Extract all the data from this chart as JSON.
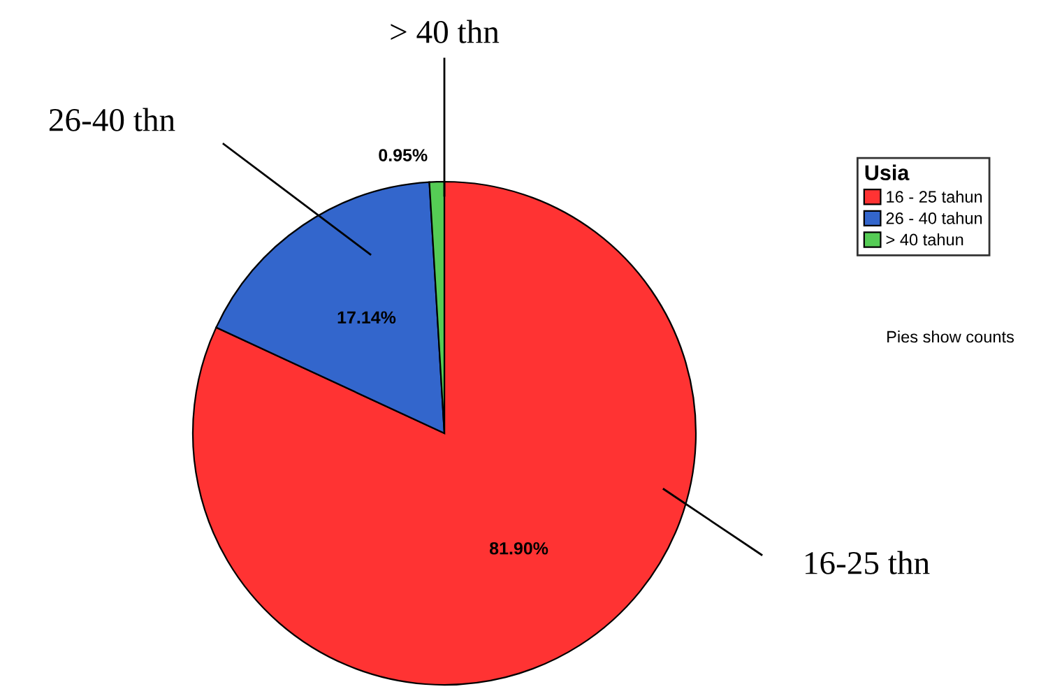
{
  "chart_data": {
    "type": "pie",
    "categories": [
      "16 - 25 tahun",
      "26 - 40 tahun",
      "> 40 tahun"
    ],
    "values": [
      81.9,
      17.14,
      0.95
    ],
    "value_labels": [
      "81.90%",
      "17.14%",
      "0.95%"
    ],
    "colors": [
      "#ff3333",
      "#3366cc",
      "#55cc55"
    ],
    "legend_title": "Usia",
    "legend": "right",
    "annotations": [
      "16-25 thn",
      "26-40 thn",
      "> 40 thn",
      "Pies show counts"
    ]
  }
}
